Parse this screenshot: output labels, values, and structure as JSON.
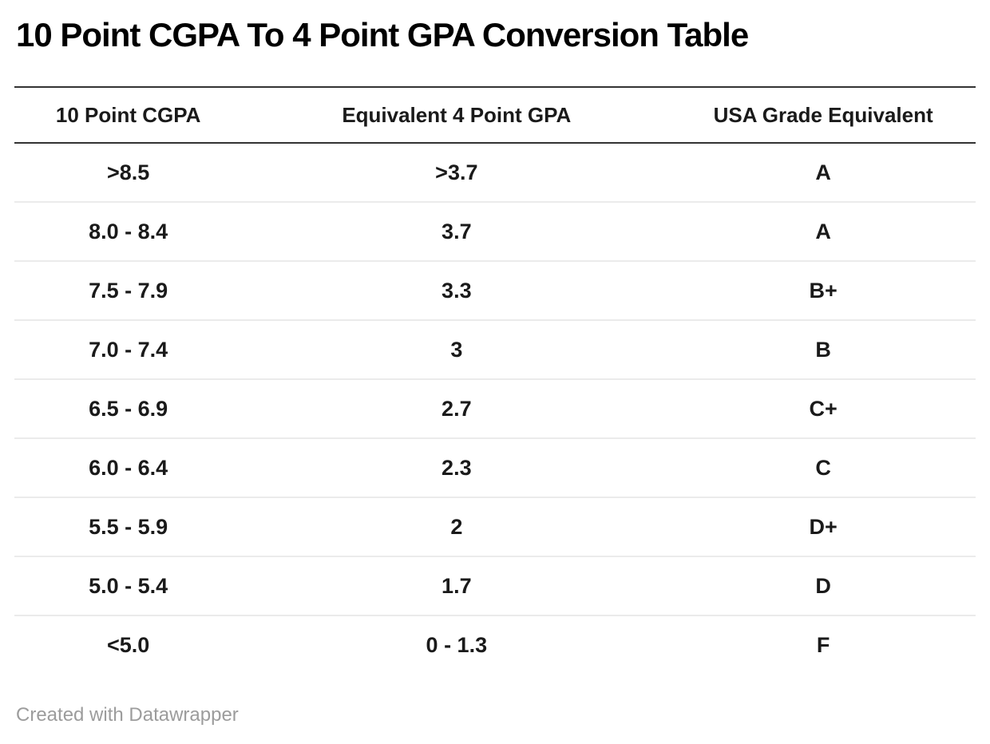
{
  "title": "10 Point CGPA To 4 Point GPA Conversion Table",
  "footer": {
    "attribution": "Created with Datawrapper"
  },
  "colors": {
    "rule_dark": "#333333",
    "row_separator": "#ebebeb",
    "text": "#1a1a1a",
    "footer_text": "#9c9c9c",
    "background": "#ffffff"
  },
  "chart_data": {
    "type": "table",
    "title": "10 Point CGPA To 4 Point GPA Conversion Table",
    "columns": [
      "10 Point CGPA",
      "Equivalent 4 Point GPA",
      "USA Grade Equivalent"
    ],
    "rows": [
      [
        ">8.5",
        ">3.7",
        "A"
      ],
      [
        "8.0 - 8.4",
        "3.7",
        "A"
      ],
      [
        "7.5 - 7.9",
        "3.3",
        "B+"
      ],
      [
        "7.0 - 7.4",
        "3",
        "B"
      ],
      [
        "6.5 - 6.9",
        "2.7",
        "C+"
      ],
      [
        "6.0 - 6.4",
        "2.3",
        "C"
      ],
      [
        "5.5 - 5.9",
        "2",
        "D+"
      ],
      [
        "5.0 - 5.4",
        "1.7",
        "D"
      ],
      [
        "<5.0",
        "0 - 1.3",
        "F"
      ]
    ],
    "layout_hints": {
      "column_alignment": "center",
      "header_rule": "dark-top-and-bottom",
      "row_rules": "light-gray-between-rows",
      "grid": "horizontal-only"
    }
  }
}
